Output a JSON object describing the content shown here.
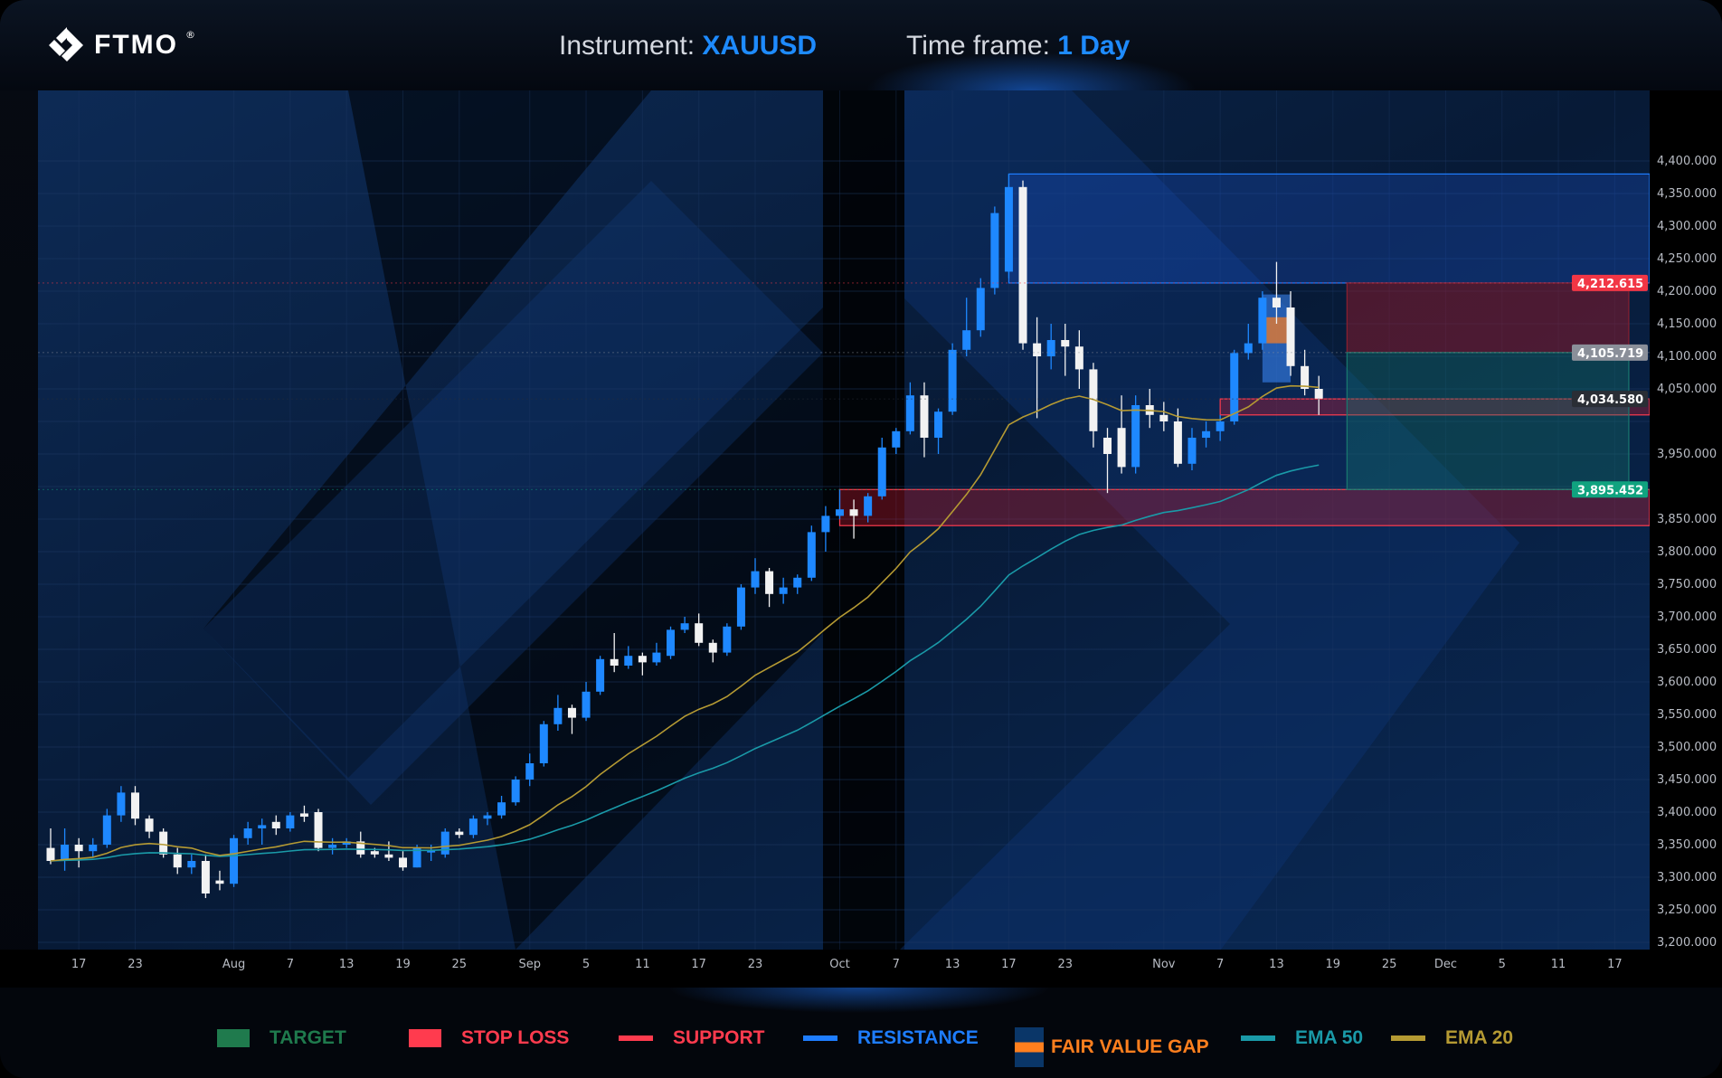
{
  "header": {
    "logo": "FTMO",
    "instrument_label": "Instrument:",
    "instrument": "XAUUSD",
    "timeframe_label": "Time frame:",
    "timeframe": "1 Day"
  },
  "colors": {
    "up": "#1e88ff",
    "down": "#f2f2f2",
    "ema20": "#b59a33",
    "ema50": "#1a9aa8",
    "support": "#ff3b4e",
    "resistance": "#1e7dff",
    "target": "#1f7a4d",
    "stop": "#ff3b4e",
    "fvg": "#ff7f1e"
  },
  "chart_data": {
    "type": "candlestick",
    "start_date": "2025-07-15",
    "ohlc": [
      [
        3345,
        3375,
        3320,
        3325
      ],
      [
        3325,
        3375,
        3310,
        3350
      ],
      [
        3350,
        3360,
        3315,
        3340
      ],
      [
        3340,
        3360,
        3330,
        3350
      ],
      [
        3350,
        3405,
        3345,
        3395
      ],
      [
        3395,
        3440,
        3385,
        3430
      ],
      [
        3430,
        3440,
        3380,
        3390
      ],
      [
        3390,
        3395,
        3360,
        3370
      ],
      [
        3370,
        3375,
        3330,
        3335
      ],
      [
        3335,
        3345,
        3305,
        3315
      ],
      [
        3315,
        3335,
        3305,
        3325
      ],
      [
        3325,
        3335,
        3268,
        3275
      ],
      [
        3295,
        3310,
        3280,
        3290
      ],
      [
        3290,
        3365,
        3285,
        3360
      ],
      [
        3360,
        3385,
        3350,
        3375
      ],
      [
        3375,
        3390,
        3350,
        3380
      ],
      [
        3385,
        3395,
        3365,
        3375
      ],
      [
        3375,
        3400,
        3370,
        3395
      ],
      [
        3398,
        3410,
        3385,
        3393
      ],
      [
        3400,
        3405,
        3340,
        3345
      ],
      [
        3345,
        3360,
        3335,
        3350
      ],
      [
        3350,
        3360,
        3345,
        3355
      ],
      [
        3355,
        3370,
        3330,
        3335
      ],
      [
        3340,
        3345,
        3330,
        3335
      ],
      [
        3335,
        3355,
        3325,
        3330
      ],
      [
        3330,
        3340,
        3310,
        3315
      ],
      [
        3315,
        3350,
        3315,
        3345
      ],
      [
        3338,
        3350,
        3325,
        3342
      ],
      [
        3335,
        3375,
        3330,
        3370
      ],
      [
        3370,
        3375,
        3360,
        3365
      ],
      [
        3365,
        3395,
        3360,
        3390
      ],
      [
        3390,
        3400,
        3380,
        3395
      ],
      [
        3395,
        3425,
        3390,
        3415
      ],
      [
        3415,
        3455,
        3410,
        3450
      ],
      [
        3450,
        3490,
        3440,
        3475
      ],
      [
        3475,
        3540,
        3470,
        3535
      ],
      [
        3535,
        3580,
        3525,
        3560
      ],
      [
        3560,
        3565,
        3520,
        3545
      ],
      [
        3545,
        3600,
        3540,
        3585
      ],
      [
        3585,
        3640,
        3580,
        3635
      ],
      [
        3635,
        3675,
        3615,
        3625
      ],
      [
        3625,
        3655,
        3620,
        3640
      ],
      [
        3640,
        3645,
        3610,
        3630
      ],
      [
        3630,
        3660,
        3625,
        3645
      ],
      [
        3640,
        3685,
        3635,
        3680
      ],
      [
        3680,
        3700,
        3675,
        3690
      ],
      [
        3690,
        3705,
        3655,
        3660
      ],
      [
        3660,
        3665,
        3630,
        3645
      ],
      [
        3645,
        3690,
        3640,
        3685
      ],
      [
        3685,
        3750,
        3680,
        3745
      ],
      [
        3745,
        3790,
        3735,
        3770
      ],
      [
        3770,
        3775,
        3715,
        3735
      ],
      [
        3735,
        3760,
        3720,
        3745
      ],
      [
        3745,
        3765,
        3735,
        3760
      ],
      [
        3760,
        3840,
        3755,
        3830
      ],
      [
        3830,
        3870,
        3800,
        3855
      ],
      [
        3855,
        3895,
        3850,
        3865
      ],
      [
        3865,
        3880,
        3820,
        3855
      ],
      [
        3855,
        3890,
        3845,
        3885
      ],
      [
        3885,
        3975,
        3880,
        3960
      ],
      [
        3960,
        3990,
        3950,
        3985
      ],
      [
        3985,
        4060,
        3980,
        4040
      ],
      [
        4040,
        4060,
        3945,
        3975
      ],
      [
        3975,
        4020,
        3950,
        4015
      ],
      [
        4015,
        4120,
        4010,
        4110
      ],
      [
        4110,
        4190,
        4100,
        4140
      ],
      [
        4140,
        4220,
        4130,
        4205
      ],
      [
        4205,
        4330,
        4195,
        4320
      ],
      [
        4230,
        4380,
        4220,
        4360
      ],
      [
        4360,
        4370,
        4110,
        4120
      ],
      [
        4120,
        4160,
        4005,
        4100
      ],
      [
        4100,
        4150,
        4080,
        4125
      ],
      [
        4125,
        4150,
        4070,
        4115
      ],
      [
        4115,
        4140,
        4050,
        4080
      ],
      [
        4080,
        4090,
        3960,
        3985
      ],
      [
        3975,
        3990,
        3890,
        3950
      ],
      [
        3990,
        4040,
        3920,
        3930
      ],
      [
        3930,
        4040,
        3920,
        4025
      ],
      [
        4025,
        4050,
        3990,
        4010
      ],
      [
        4010,
        4030,
        3985,
        4000
      ],
      [
        4000,
        4020,
        3930,
        3935
      ],
      [
        3935,
        3990,
        3925,
        3975
      ],
      [
        3975,
        4000,
        3960,
        3985
      ],
      [
        3985,
        4010,
        3970,
        4000
      ],
      [
        4000,
        4110,
        3995,
        4105
      ],
      [
        4105,
        4150,
        4095,
        4120
      ],
      [
        4120,
        4200,
        4110,
        4190
      ],
      [
        4190,
        4245,
        4150,
        4175
      ],
      [
        4175,
        4200,
        4070,
        4085
      ],
      [
        4085,
        4110,
        4040,
        4050
      ],
      [
        4050,
        4070,
        4010,
        4035
      ]
    ],
    "ema_periods": [
      20,
      50
    ],
    "ylim": [
      3180,
      4440
    ],
    "y_ticks": [
      "4,400.000",
      "4,350.000",
      "4,300.000",
      "4,250.000",
      "4,200.000",
      "4,150.000",
      "4,100.000",
      "4,050.000",
      "3,950.000",
      "3,850.000",
      "3,800.000",
      "3,750.000",
      "3,700.000",
      "3,650.000",
      "3,600.000",
      "3,550.000",
      "3,500.000",
      "3,450.000",
      "3,400.000",
      "3,350.000",
      "3,300.000",
      "3,250.000",
      "3,200.000"
    ],
    "x_ticks": [
      {
        "label": "17",
        "date": "2025-07-17"
      },
      {
        "label": "23",
        "date": "2025-07-23"
      },
      {
        "label": "Aug",
        "date": "2025-08-01"
      },
      {
        "label": "7",
        "date": "2025-08-07"
      },
      {
        "label": "13",
        "date": "2025-08-13"
      },
      {
        "label": "19",
        "date": "2025-08-19"
      },
      {
        "label": "25",
        "date": "2025-08-25"
      },
      {
        "label": "Sep",
        "date": "2025-09-01"
      },
      {
        "label": "5",
        "date": "2025-09-05"
      },
      {
        "label": "11",
        "date": "2025-09-11"
      },
      {
        "label": "17",
        "date": "2025-09-17"
      },
      {
        "label": "23",
        "date": "2025-09-23"
      },
      {
        "label": "Oct",
        "date": "2025-10-01"
      },
      {
        "label": "7",
        "date": "2025-10-07"
      },
      {
        "label": "13",
        "date": "2025-10-13"
      },
      {
        "label": "17",
        "date": "2025-10-17"
      },
      {
        "label": "23",
        "date": "2025-10-23"
      },
      {
        "label": "Nov",
        "date": "2025-11-03"
      },
      {
        "label": "7",
        "date": "2025-11-07"
      },
      {
        "label": "13",
        "date": "2025-11-13"
      },
      {
        "label": "19",
        "date": "2025-11-19"
      },
      {
        "label": "25",
        "date": "2025-11-25"
      },
      {
        "label": "Dec",
        "date": "2025-12-01"
      },
      {
        "label": "5",
        "date": "2025-12-05"
      },
      {
        "label": "11",
        "date": "2025-12-11"
      },
      {
        "label": "17",
        "date": "2025-12-17"
      }
    ],
    "zones": [
      {
        "kind": "resistance",
        "from": "2025-10-17",
        "to": "edge",
        "low": 4212.615,
        "high": 4380
      },
      {
        "kind": "support",
        "from": "2025-10-01",
        "to": "edge",
        "low": 3840,
        "high": 3895.452
      },
      {
        "kind": "support",
        "from": "2025-11-07",
        "to": "edge",
        "low": 4010,
        "high": 4034.58
      },
      {
        "kind": "stop",
        "from": "2025-11-20",
        "to": "2025-12-18",
        "low": 4105.719,
        "high": 4212.615
      },
      {
        "kind": "target",
        "from": "2025-11-20",
        "to": "2025-12-18",
        "low": 3895.452,
        "high": 4105.719
      },
      {
        "kind": "fvg-outer",
        "from": "2025-11-12",
        "to": "2025-11-14",
        "low": 4060,
        "high": 4195
      },
      {
        "kind": "fvg",
        "from": "2025-11-12",
        "to": "2025-11-14",
        "low": 4120,
        "high": 4160
      }
    ],
    "price_labels": [
      {
        "text": "4,212.615",
        "value": 4212.615,
        "color": "#f23645"
      },
      {
        "text": "4,105.719",
        "value": 4105.719,
        "color": "#8a8f99"
      },
      {
        "text": "4,034.580",
        "value": 4034.58,
        "color": "#2a2e35"
      },
      {
        "text": "3,895.452",
        "value": 3895.452,
        "color": "#10a37f"
      }
    ]
  },
  "legend": [
    {
      "label": "TARGET",
      "color": "#1f7a4d",
      "swatch": "box"
    },
    {
      "label": "STOP LOSS",
      "color": "#ff3b4e",
      "swatch": "box"
    },
    {
      "label": "SUPPORT",
      "color": "#ff3b4e",
      "swatch": "line"
    },
    {
      "label": "RESISTANCE",
      "color": "#1e7dff",
      "swatch": "line"
    },
    {
      "label": "FAIR VALUE GAP",
      "color": "#ff7f1e",
      "swatch": "fvg"
    },
    {
      "label": "EMA 50",
      "color": "#1a9aa8",
      "swatch": "line"
    },
    {
      "label": "EMA 20",
      "color": "#b59a33",
      "swatch": "line"
    }
  ]
}
